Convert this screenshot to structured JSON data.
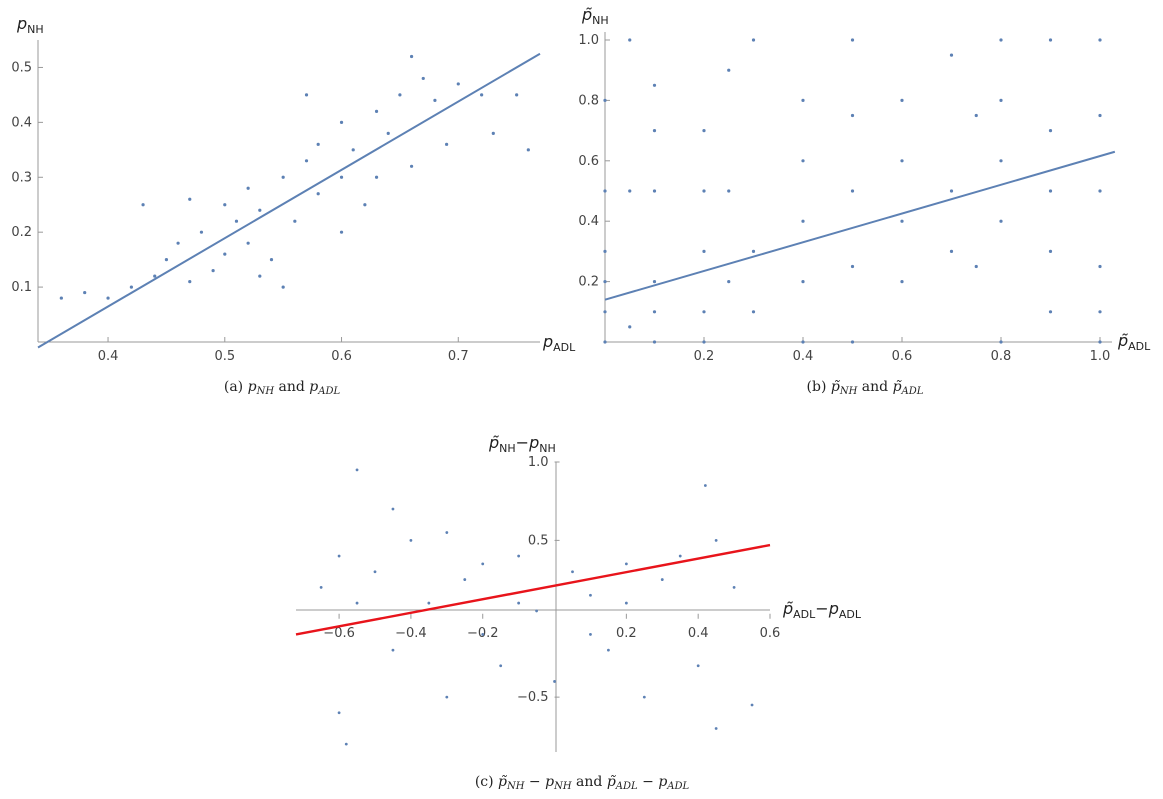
{
  "chart_data": [
    {
      "type": "scatter",
      "xlabel": "p_ADL",
      "ylabel": "p_NH",
      "xlim": [
        0.34,
        0.77
      ],
      "ylim": [
        0.0,
        0.55
      ],
      "x_ticks": [
        0.4,
        0.5,
        0.6,
        0.7
      ],
      "y_ticks": [
        0.1,
        0.2,
        0.3,
        0.4,
        0.5
      ],
      "caption": "(a) p_NH and p_ADL",
      "series": [
        {
          "kind": "scatter",
          "color": "#5d81b4",
          "points": [
            [
              0.42,
              0.1
            ],
            [
              0.44,
              0.12
            ],
            [
              0.45,
              0.15
            ],
            [
              0.46,
              0.18
            ],
            [
              0.48,
              0.2
            ],
            [
              0.49,
              0.13
            ],
            [
              0.5,
              0.16
            ],
            [
              0.5,
              0.25
            ],
            [
              0.51,
              0.22
            ],
            [
              0.52,
              0.18
            ],
            [
              0.52,
              0.28
            ],
            [
              0.53,
              0.24
            ],
            [
              0.54,
              0.15
            ],
            [
              0.55,
              0.3
            ],
            [
              0.56,
              0.22
            ],
            [
              0.57,
              0.33
            ],
            [
              0.58,
              0.27
            ],
            [
              0.58,
              0.36
            ],
            [
              0.6,
              0.3
            ],
            [
              0.6,
              0.4
            ],
            [
              0.61,
              0.35
            ],
            [
              0.62,
              0.25
            ],
            [
              0.63,
              0.42
            ],
            [
              0.64,
              0.38
            ],
            [
              0.65,
              0.45
            ],
            [
              0.66,
              0.32
            ],
            [
              0.67,
              0.48
            ],
            [
              0.68,
              0.44
            ],
            [
              0.7,
              0.47
            ],
            [
              0.72,
              0.45
            ],
            [
              0.4,
              0.08
            ],
            [
              0.47,
              0.11
            ],
            [
              0.53,
              0.12
            ],
            [
              0.55,
              0.1
            ],
            [
              0.6,
              0.2
            ],
            [
              0.63,
              0.3
            ],
            [
              0.69,
              0.36
            ],
            [
              0.73,
              0.38
            ],
            [
              0.76,
              0.35
            ],
            [
              0.38,
              0.09
            ],
            [
              0.36,
              0.08
            ],
            [
              0.43,
              0.25
            ],
            [
              0.47,
              0.26
            ],
            [
              0.57,
              0.45
            ],
            [
              0.66,
              0.52
            ],
            [
              0.75,
              0.45
            ]
          ]
        },
        {
          "kind": "fit-line",
          "color": "#5d81b4",
          "points": [
            [
              0.34,
              -0.01
            ],
            [
              0.77,
              0.525
            ]
          ]
        }
      ]
    },
    {
      "type": "scatter",
      "xlabel": "p̃_ADL",
      "ylabel": "p̃_NH",
      "xlim": [
        0.0,
        1.0
      ],
      "ylim": [
        0.0,
        1.0
      ],
      "x_ticks": [
        0.2,
        0.4,
        0.6,
        0.8,
        1.0
      ],
      "y_ticks": [
        0.2,
        0.4,
        0.6,
        0.8,
        1.0
      ],
      "caption": "(b) p̃_NH and p̃_ADL",
      "series": [
        {
          "kind": "scatter",
          "color": "#5d81b4",
          "points": [
            [
              0,
              0
            ],
            [
              0,
              0.1
            ],
            [
              0,
              0.2
            ],
            [
              0,
              0.3
            ],
            [
              0,
              0.5
            ],
            [
              0,
              0.8
            ],
            [
              0.05,
              0.05
            ],
            [
              0.05,
              0.5
            ],
            [
              0.05,
              1.0
            ],
            [
              0.1,
              0
            ],
            [
              0.1,
              0.1
            ],
            [
              0.1,
              0.2
            ],
            [
              0.1,
              0.5
            ],
            [
              0.1,
              0.7
            ],
            [
              0.1,
              0.85
            ],
            [
              0.2,
              0
            ],
            [
              0.2,
              0.1
            ],
            [
              0.2,
              0.3
            ],
            [
              0.2,
              0.5
            ],
            [
              0.2,
              0.7
            ],
            [
              0.25,
              0.2
            ],
            [
              0.25,
              0.5
            ],
            [
              0.25,
              0.9
            ],
            [
              0.3,
              0.1
            ],
            [
              0.3,
              0.3
            ],
            [
              0.3,
              1.0
            ],
            [
              0.4,
              0
            ],
            [
              0.4,
              0.2
            ],
            [
              0.4,
              0.4
            ],
            [
              0.4,
              0.6
            ],
            [
              0.4,
              0.8
            ],
            [
              0.5,
              0
            ],
            [
              0.5,
              0.25
            ],
            [
              0.5,
              0.5
            ],
            [
              0.5,
              0.75
            ],
            [
              0.5,
              1.0
            ],
            [
              0.6,
              0.2
            ],
            [
              0.6,
              0.4
            ],
            [
              0.6,
              0.6
            ],
            [
              0.6,
              0.8
            ],
            [
              0.7,
              0.3
            ],
            [
              0.7,
              0.5
            ],
            [
              0.7,
              0.95
            ],
            [
              0.75,
              0.25
            ],
            [
              0.75,
              0.75
            ],
            [
              0.8,
              0
            ],
            [
              0.8,
              0.4
            ],
            [
              0.8,
              0.6
            ],
            [
              0.8,
              0.8
            ],
            [
              0.8,
              1.0
            ],
            [
              0.9,
              0.1
            ],
            [
              0.9,
              0.3
            ],
            [
              0.9,
              0.5
            ],
            [
              0.9,
              0.7
            ],
            [
              0.9,
              1.0
            ],
            [
              1.0,
              0
            ],
            [
              1.0,
              0.1
            ],
            [
              1.0,
              0.25
            ],
            [
              1.0,
              0.5
            ],
            [
              1.0,
              0.75
            ],
            [
              1.0,
              1.0
            ]
          ]
        },
        {
          "kind": "fit-line",
          "color": "#5d81b4",
          "points": [
            [
              0.0,
              0.14
            ],
            [
              1.03,
              0.63
            ]
          ]
        }
      ]
    },
    {
      "type": "scatter",
      "xlabel": "p̃_ADL−p_ADL",
      "ylabel": "p̃_NH−p_NH",
      "xlim": [
        -0.72,
        0.6
      ],
      "ylim": [
        -0.85,
        1.0
      ],
      "x_ticks": [
        -0.6,
        -0.4,
        -0.2,
        0.2,
        0.4,
        0.6
      ],
      "y_ticks": [
        -0.5,
        0.5,
        1.0
      ],
      "caption": "(c) p̃_NH − p_NH and p̃_ADL − p_ADL",
      "series": [
        {
          "kind": "scatter",
          "color": "#5d81b4",
          "points": [
            [
              -0.65,
              0.2
            ],
            [
              -0.6,
              0.4
            ],
            [
              -0.55,
              0.1
            ],
            [
              -0.5,
              0.3
            ],
            [
              -0.45,
              -0.2
            ],
            [
              -0.4,
              0.5
            ],
            [
              -0.35,
              0.1
            ],
            [
              -0.3,
              -0.5
            ],
            [
              -0.25,
              0.25
            ],
            [
              -0.2,
              0.35
            ],
            [
              -0.15,
              -0.3
            ],
            [
              -0.1,
              0.4
            ],
            [
              -0.05,
              0.05
            ],
            [
              0,
              -0.4
            ],
            [
              0.05,
              0.3
            ],
            [
              0.1,
              0.15
            ],
            [
              0.15,
              -0.2
            ],
            [
              0.2,
              0.35
            ],
            [
              0.25,
              -0.5
            ],
            [
              0.3,
              0.25
            ],
            [
              0.35,
              0.4
            ],
            [
              0.4,
              -0.3
            ],
            [
              0.45,
              0.5
            ],
            [
              0.5,
              0.2
            ],
            [
              0.55,
              -0.55
            ],
            [
              -0.6,
              -0.6
            ],
            [
              -0.45,
              0.7
            ],
            [
              -0.3,
              0.55
            ],
            [
              -0.55,
              0.95
            ],
            [
              0.42,
              0.85
            ],
            [
              -0.58,
              -0.8
            ],
            [
              0.45,
              -0.7
            ],
            [
              -0.2,
              -0.1
            ],
            [
              0.1,
              -0.1
            ],
            [
              0.2,
              0.1
            ],
            [
              -0.1,
              0.1
            ]
          ]
        },
        {
          "kind": "fit-line",
          "color": "#e8141b",
          "points": [
            [
              -0.72,
              -0.1
            ],
            [
              0.6,
              0.47
            ]
          ]
        }
      ]
    }
  ]
}
